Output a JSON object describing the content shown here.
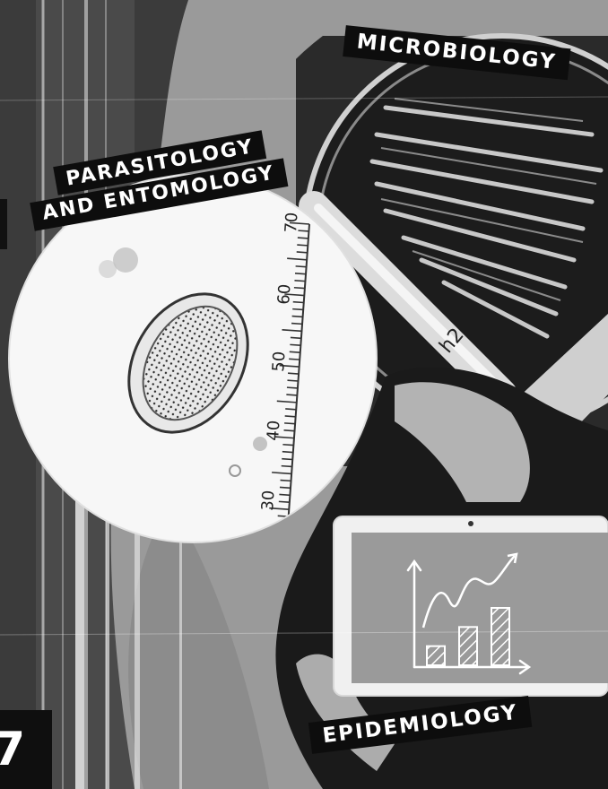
{
  "labels": {
    "microbiology": "MICROBIOLOGY",
    "parasitology_line1": "PARASITOLOGY",
    "parasitology_line2": "AND ENTOMOLOGY",
    "epidemiology": "EPIDEMIOLOGY"
  },
  "page_number": "7",
  "micrometer_ticks": [
    "70",
    "60",
    "50",
    "40",
    "30"
  ],
  "tablet_chart": {
    "bars": [
      {
        "value": 2
      },
      {
        "value": 4
      },
      {
        "value": 6
      }
    ]
  },
  "icons": [
    "petri-dish-image",
    "parasite-egg-micrograph",
    "tablet-chart-icon",
    "trend-arrow-icon"
  ]
}
